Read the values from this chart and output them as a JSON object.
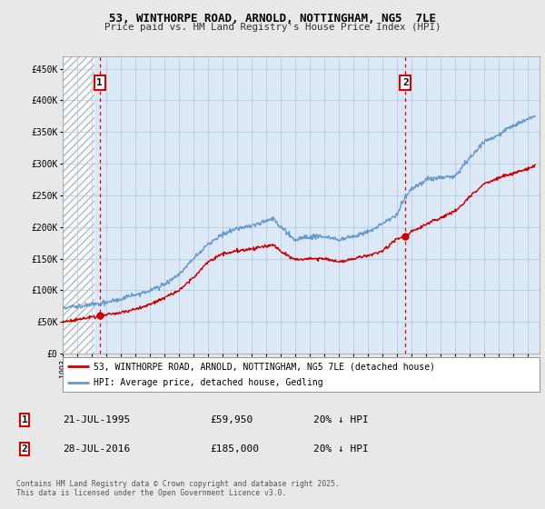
{
  "title1": "53, WINTHORPE ROAD, ARNOLD, NOTTINGHAM, NG5  7LE",
  "title2": "Price paid vs. HM Land Registry's House Price Index (HPI)",
  "ylabel_ticks": [
    "£0",
    "£50K",
    "£100K",
    "£150K",
    "£200K",
    "£250K",
    "£300K",
    "£350K",
    "£400K",
    "£450K"
  ],
  "ytick_vals": [
    0,
    50000,
    100000,
    150000,
    200000,
    250000,
    300000,
    350000,
    400000,
    450000
  ],
  "ylim": [
    0,
    470000
  ],
  "background_color": "#e8e8e8",
  "plot_bg": "#dce8f5",
  "grid_color": "#b0c8e0",
  "red_line_color": "#cc0000",
  "blue_line_color": "#6699cc",
  "vline_color": "#dd0000",
  "marker1_x": 1995.55,
  "marker1_y": 59950,
  "marker2_x": 2016.57,
  "marker2_y": 185000,
  "annotation1_label": "1",
  "annotation2_label": "2",
  "legend_label1": "53, WINTHORPE ROAD, ARNOLD, NOTTINGHAM, NG5 7LE (detached house)",
  "legend_label2": "HPI: Average price, detached house, Gedling",
  "table_row1": [
    "1",
    "21-JUL-1995",
    "£59,950",
    "20% ↓ HPI"
  ],
  "table_row2": [
    "2",
    "28-JUL-2016",
    "£185,000",
    "20% ↓ HPI"
  ],
  "footer": "Contains HM Land Registry data © Crown copyright and database right 2025.\nThis data is licensed under the Open Government Licence v3.0.",
  "xlim_start": 1993.0,
  "xlim_end": 2025.8,
  "hatch_end": 1995.0
}
